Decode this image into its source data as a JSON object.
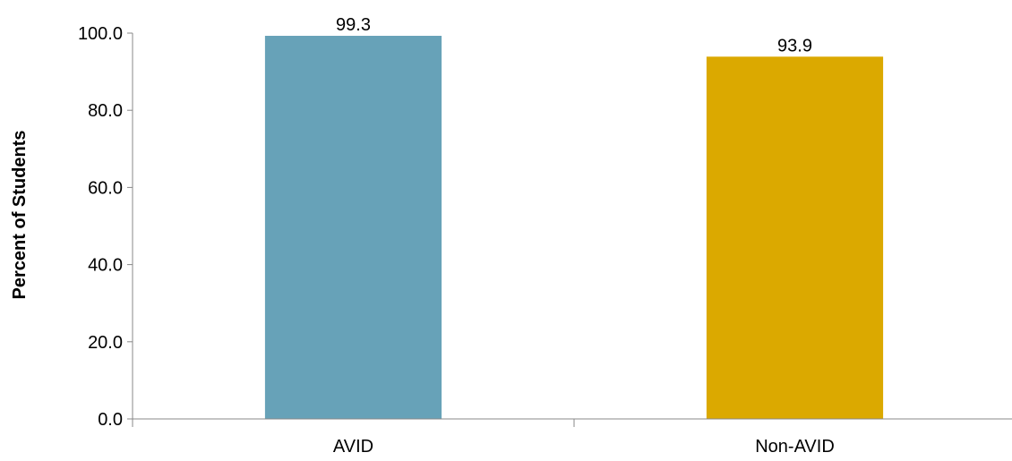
{
  "chart_data": {
    "type": "bar",
    "title": "",
    "xlabel": "",
    "ylabel": "Percent of Students",
    "categories": [
      "AVID",
      "Non-AVID"
    ],
    "values": [
      99.3,
      93.9
    ],
    "value_labels": [
      "99.3",
      "93.9"
    ],
    "colors": [
      "#67a2b8",
      "#dba900"
    ],
    "ylim": [
      0,
      100
    ],
    "yticks": [
      0,
      20,
      40,
      60,
      80,
      100
    ],
    "ytick_labels": [
      "0.0",
      "20.0",
      "40.0",
      "60.0",
      "80.0",
      "100.0"
    ],
    "grid": false,
    "legend": "none"
  }
}
